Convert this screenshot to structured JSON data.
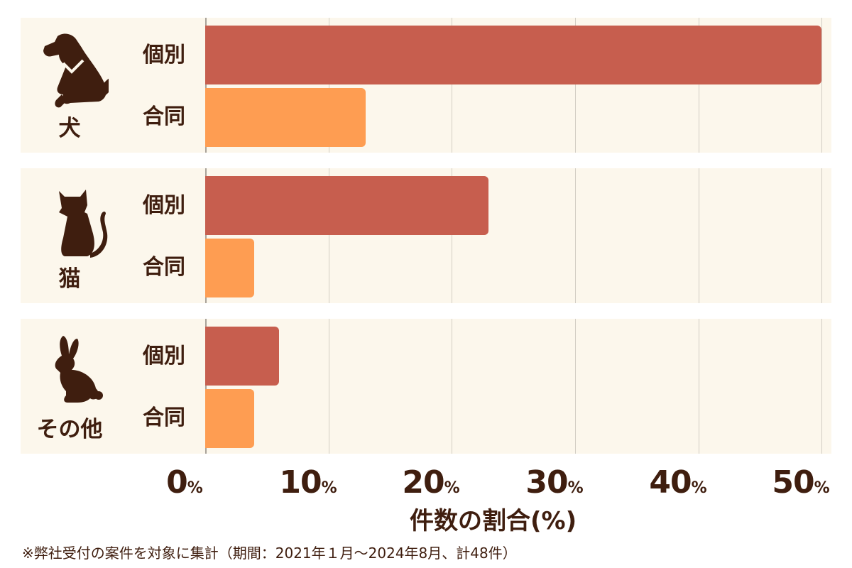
{
  "colors": {
    "individual": "#c75e4e",
    "joint": "#fe9d52",
    "panel_bg": "#fcf7ec",
    "text": "#3f1e0f",
    "grid": "#d2cdc3"
  },
  "axis": {
    "ticks": [
      {
        "value": "0",
        "unit": "%"
      },
      {
        "value": "10",
        "unit": "%"
      },
      {
        "value": "20",
        "unit": "%"
      },
      {
        "value": "30",
        "unit": "%"
      },
      {
        "value": "40",
        "unit": "%"
      },
      {
        "value": "50",
        "unit": "%"
      }
    ],
    "xlabel": "件数の割合(%)"
  },
  "groups": [
    {
      "label": "犬",
      "icon": "dog-icon",
      "rows": [
        {
          "label": "個別",
          "value": 50
        },
        {
          "label": "合同",
          "value": 13
        }
      ]
    },
    {
      "label": "猫",
      "icon": "cat-icon",
      "rows": [
        {
          "label": "個別",
          "value": 23
        },
        {
          "label": "合同",
          "value": 4
        }
      ]
    },
    {
      "label": "その他",
      "icon": "rabbit-icon",
      "rows": [
        {
          "label": "個別",
          "value": 6
        },
        {
          "label": "合同",
          "value": 4
        }
      ]
    }
  ],
  "footnote": "※弊社受付の案件を対象に集計（期間：2021年１月〜2024年8月、計48件）",
  "chart_data": {
    "type": "bar",
    "orientation": "horizontal",
    "title": "",
    "xlabel": "件数の割合(%)",
    "ylabel": "",
    "xlim": [
      0,
      50
    ],
    "x_ticks": [
      "0%",
      "10%",
      "20%",
      "30%",
      "40%",
      "50%"
    ],
    "grid": true,
    "categories": [
      "犬",
      "猫",
      "その他"
    ],
    "series": [
      {
        "name": "個別",
        "color": "#c75e4e",
        "values": [
          50,
          23,
          6
        ]
      },
      {
        "name": "合同",
        "color": "#fe9d52",
        "values": [
          13,
          4,
          4
        ]
      }
    ],
    "note": "※弊社受付の案件を対象に集計（期間：2021年１月〜2024年8月、計48件）"
  }
}
